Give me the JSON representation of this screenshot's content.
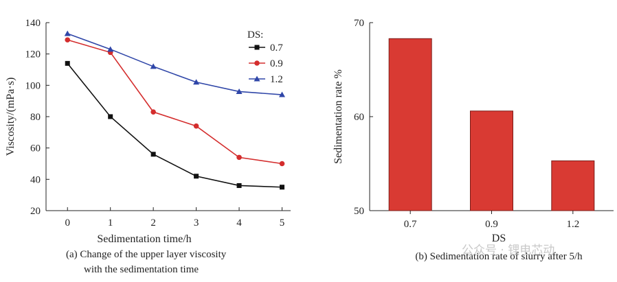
{
  "chart_data": [
    {
      "type": "line",
      "xlabel": "Sedimentation time/h",
      "ylabel": "Viscosity/(mPa·s)",
      "x": [
        0,
        1,
        2,
        3,
        4,
        5
      ],
      "xlim": [
        -0.5,
        5.2
      ],
      "ylim": [
        20,
        140
      ],
      "yticks": [
        20,
        40,
        60,
        80,
        100,
        120,
        140
      ],
      "legend_title": "DS:",
      "legend_position": "top-right",
      "series": [
        {
          "name": "0.7",
          "marker": "square",
          "color": "#111111",
          "values": [
            114,
            80,
            56,
            42,
            36,
            35
          ]
        },
        {
          "name": "0.9",
          "marker": "circle",
          "color": "#d42d2d",
          "values": [
            129,
            121,
            83,
            74,
            54,
            50
          ]
        },
        {
          "name": "1.2",
          "marker": "triangle",
          "color": "#2f46a8",
          "values": [
            133,
            123,
            112,
            102,
            96,
            94
          ]
        }
      ],
      "caption_line1": "(a) Change of the upper layer viscosity",
      "caption_line2": "with the sedimentation time"
    },
    {
      "type": "bar",
      "xlabel": "DS",
      "ylabel": "Sedimentation rate %",
      "categories": [
        "0.7",
        "0.9",
        "1.2"
      ],
      "values": [
        68.3,
        60.6,
        55.3
      ],
      "ylim": [
        50,
        70
      ],
      "yticks": [
        50,
        60,
        70
      ],
      "bar_color": "#d93a33",
      "caption": "(b) Sedimentation rate of slurry after 5/h"
    }
  ],
  "watermark": "公众号 · 锂电芯动"
}
